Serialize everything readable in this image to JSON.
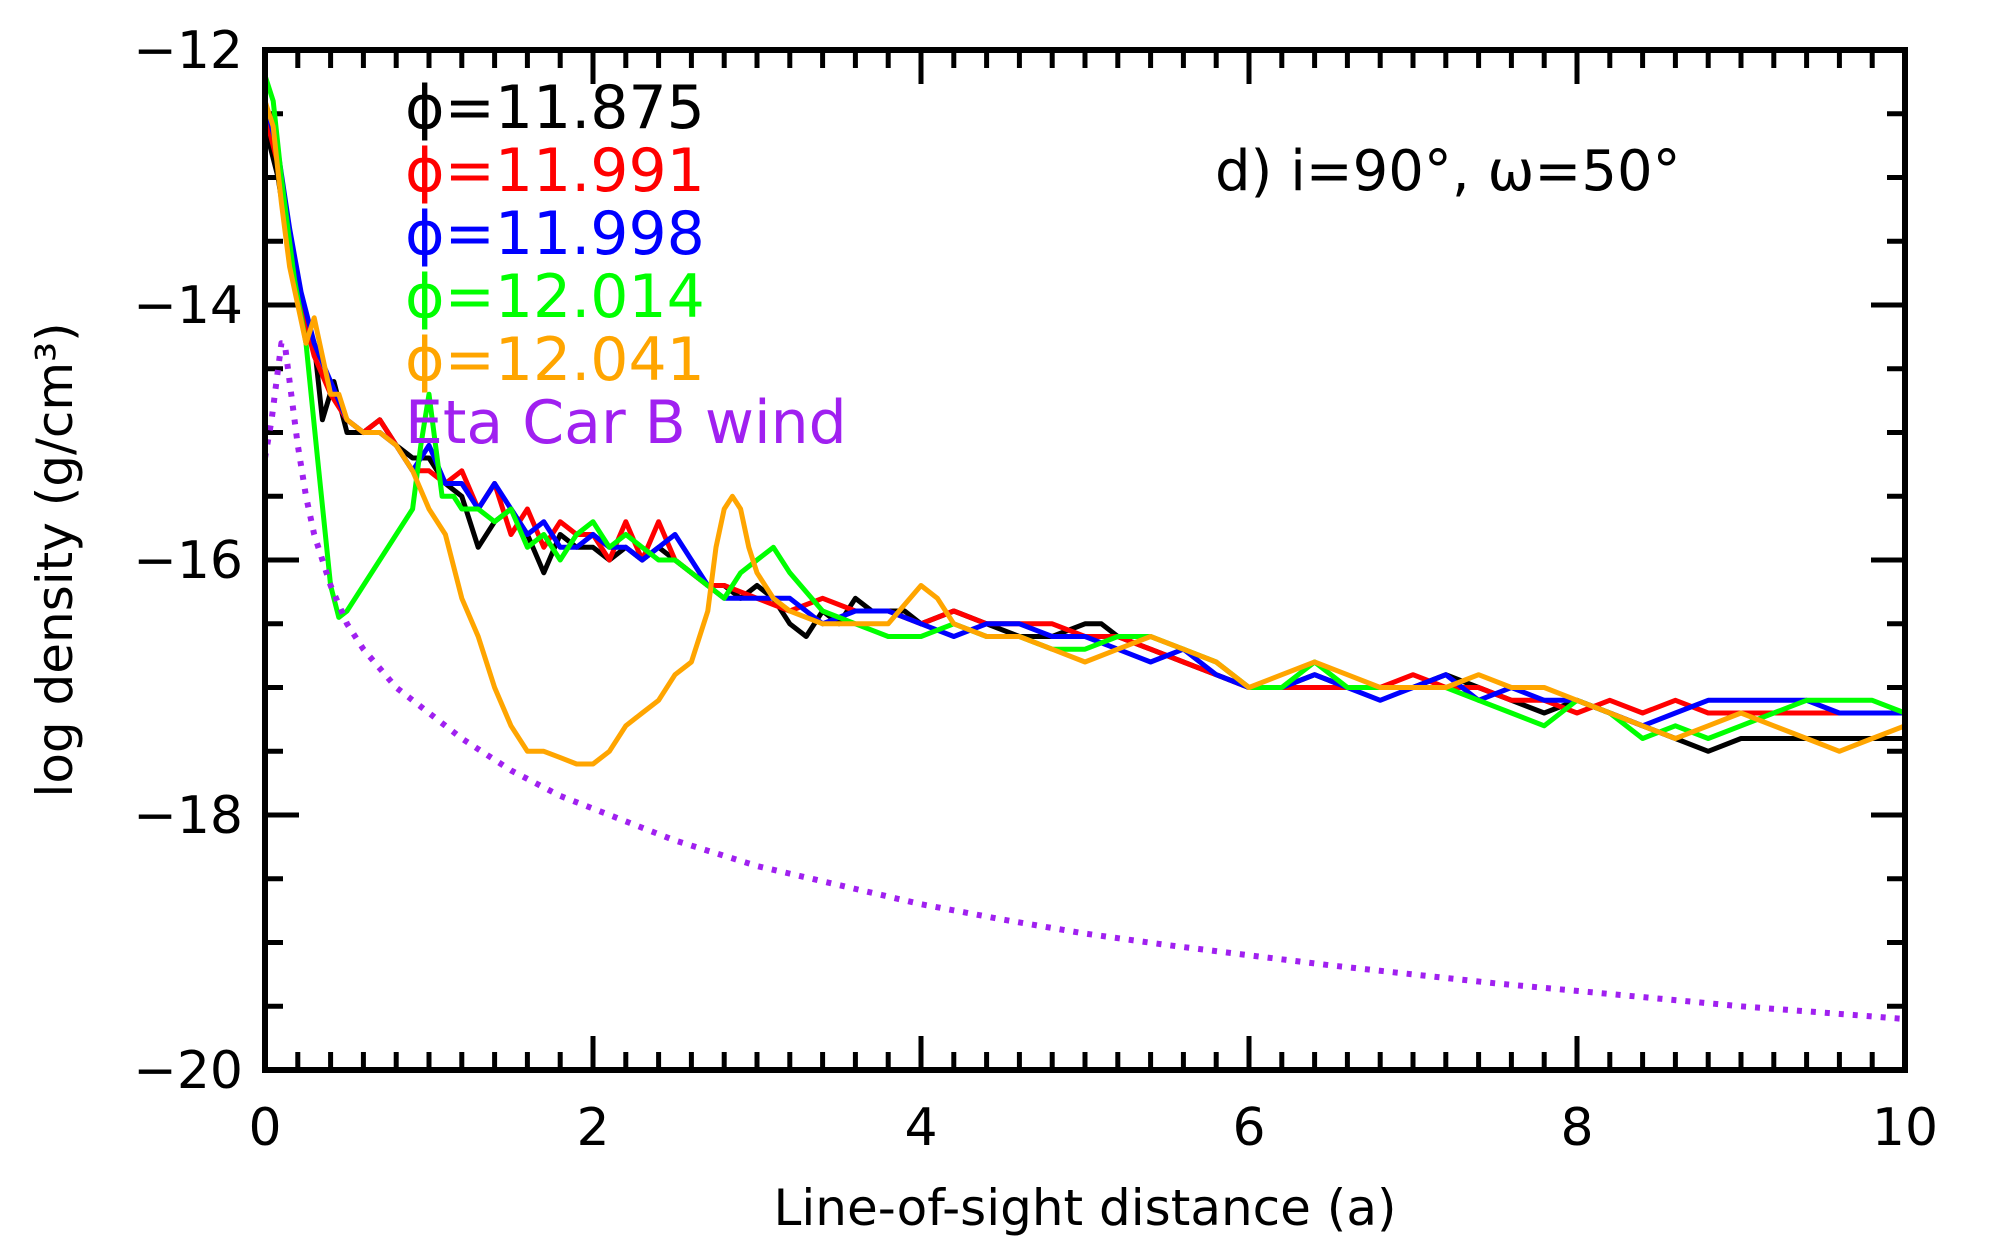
{
  "chart_data": {
    "type": "line",
    "xlabel": "Line-of-sight distance (a)",
    "ylabel": "log density (g/cm³)",
    "annotation": "d) i=90°, ω=50°",
    "xlim": [
      0,
      10
    ],
    "ylim": [
      -20,
      -12
    ],
    "x_major_ticks": [
      0,
      2,
      4,
      6,
      8,
      10
    ],
    "x_tick_labels": [
      "0",
      "2",
      "4",
      "6",
      "8",
      "10"
    ],
    "y_major_ticks": [
      -20,
      -18,
      -16,
      -14,
      -12
    ],
    "y_tick_labels": [
      "−20",
      "−18",
      "−16",
      "−14",
      "−12"
    ],
    "legend_position": "top-left",
    "grid": false,
    "series": [
      {
        "name": "ϕ=11.875",
        "color": "#000000",
        "style": "solid",
        "x": [
          0.0,
          0.08,
          0.15,
          0.22,
          0.3,
          0.35,
          0.42,
          0.5,
          0.6,
          0.7,
          0.8,
          0.9,
          1.0,
          1.1,
          1.2,
          1.3,
          1.4,
          1.5,
          1.6,
          1.7,
          1.8,
          1.9,
          2.0,
          2.1,
          2.2,
          2.3,
          2.4,
          2.5,
          2.6,
          2.7,
          2.8,
          2.9,
          3.0,
          3.1,
          3.2,
          3.3,
          3.4,
          3.5,
          3.6,
          3.7,
          3.8,
          3.9,
          4.0,
          4.2,
          4.4,
          4.6,
          4.8,
          5.0,
          5.1,
          5.2,
          5.4,
          5.6,
          5.8,
          6.0,
          6.2,
          6.4,
          6.6,
          6.8,
          7.0,
          7.2,
          7.4,
          7.6,
          7.8,
          8.0,
          8.2,
          8.4,
          8.6,
          8.8,
          9.0,
          9.2,
          9.4,
          9.6,
          9.8,
          10.0
        ],
        "y": [
          -12.6,
          -13.0,
          -13.6,
          -14.0,
          -14.3,
          -14.9,
          -14.6,
          -15.0,
          -15.0,
          -14.9,
          -15.1,
          -15.2,
          -15.2,
          -15.4,
          -15.5,
          -15.9,
          -15.7,
          -15.6,
          -15.8,
          -16.1,
          -15.8,
          -15.9,
          -15.9,
          -16.0,
          -15.9,
          -16.0,
          -15.9,
          -16.0,
          -16.1,
          -16.2,
          -16.2,
          -16.3,
          -16.2,
          -16.3,
          -16.5,
          -16.6,
          -16.4,
          -16.5,
          -16.3,
          -16.4,
          -16.4,
          -16.4,
          -16.5,
          -16.4,
          -16.5,
          -16.6,
          -16.6,
          -16.5,
          -16.5,
          -16.6,
          -16.7,
          -16.8,
          -16.9,
          -17.0,
          -17.0,
          -16.9,
          -17.0,
          -17.0,
          -17.0,
          -16.9,
          -17.0,
          -17.1,
          -17.2,
          -17.1,
          -17.2,
          -17.3,
          -17.4,
          -17.5,
          -17.4,
          -17.4,
          -17.4,
          -17.4,
          -17.4,
          -17.4
        ]
      },
      {
        "name": "ϕ=11.991",
        "color": "#ff0000",
        "style": "solid",
        "x": [
          0.0,
          0.08,
          0.15,
          0.22,
          0.3,
          0.4,
          0.5,
          0.6,
          0.7,
          0.8,
          0.9,
          1.0,
          1.1,
          1.2,
          1.3,
          1.4,
          1.5,
          1.6,
          1.7,
          1.8,
          1.9,
          2.0,
          2.1,
          2.2,
          2.3,
          2.4,
          2.5,
          2.6,
          2.7,
          2.8,
          3.0,
          3.2,
          3.4,
          3.6,
          3.8,
          4.0,
          4.2,
          4.4,
          4.6,
          4.8,
          5.0,
          5.2,
          5.4,
          5.6,
          5.8,
          6.0,
          6.2,
          6.4,
          6.6,
          6.8,
          7.0,
          7.2,
          7.4,
          7.6,
          7.8,
          8.0,
          8.2,
          8.4,
          8.6,
          8.8,
          9.0,
          9.2,
          9.4,
          9.6,
          9.8,
          10.0
        ],
        "y": [
          -12.5,
          -12.9,
          -13.5,
          -14.0,
          -14.4,
          -14.7,
          -14.9,
          -15.0,
          -14.9,
          -15.1,
          -15.3,
          -15.3,
          -15.4,
          -15.3,
          -15.6,
          -15.4,
          -15.8,
          -15.6,
          -15.9,
          -15.7,
          -15.8,
          -15.8,
          -16.0,
          -15.7,
          -16.0,
          -15.7,
          -16.0,
          -16.1,
          -16.2,
          -16.2,
          -16.3,
          -16.4,
          -16.3,
          -16.4,
          -16.4,
          -16.5,
          -16.4,
          -16.5,
          -16.5,
          -16.5,
          -16.6,
          -16.6,
          -16.7,
          -16.8,
          -16.9,
          -17.0,
          -17.0,
          -17.0,
          -17.0,
          -17.0,
          -16.9,
          -17.0,
          -17.0,
          -17.1,
          -17.1,
          -17.2,
          -17.1,
          -17.2,
          -17.1,
          -17.2,
          -17.2,
          -17.2,
          -17.2,
          -17.2,
          -17.2,
          -17.2
        ]
      },
      {
        "name": "ϕ=11.998",
        "color": "#0000ff",
        "style": "solid",
        "x": [
          0.0,
          0.08,
          0.15,
          0.22,
          0.3,
          0.4,
          0.5,
          0.6,
          0.7,
          0.8,
          0.9,
          1.0,
          1.1,
          1.2,
          1.3,
          1.4,
          1.5,
          1.6,
          1.7,
          1.8,
          1.9,
          2.0,
          2.1,
          2.2,
          2.3,
          2.4,
          2.5,
          2.6,
          2.7,
          2.8,
          3.0,
          3.2,
          3.4,
          3.6,
          3.8,
          4.0,
          4.2,
          4.4,
          4.6,
          4.8,
          5.0,
          5.2,
          5.4,
          5.6,
          5.8,
          6.0,
          6.2,
          6.4,
          6.6,
          6.8,
          7.0,
          7.2,
          7.4,
          7.6,
          7.8,
          8.0,
          8.2,
          8.4,
          8.6,
          8.8,
          9.0,
          9.2,
          9.4,
          9.6,
          9.8,
          10.0
        ],
        "y": [
          -12.4,
          -12.8,
          -13.4,
          -13.9,
          -14.3,
          -14.6,
          -14.9,
          -15.0,
          -15.0,
          -15.1,
          -15.3,
          -15.1,
          -15.4,
          -15.4,
          -15.6,
          -15.4,
          -15.6,
          -15.8,
          -15.7,
          -15.9,
          -15.9,
          -15.8,
          -15.9,
          -15.9,
          -16.0,
          -15.9,
          -15.8,
          -16.0,
          -16.2,
          -16.3,
          -16.3,
          -16.3,
          -16.5,
          -16.4,
          -16.4,
          -16.5,
          -16.6,
          -16.5,
          -16.5,
          -16.6,
          -16.6,
          -16.7,
          -16.8,
          -16.7,
          -16.9,
          -17.0,
          -17.0,
          -16.9,
          -17.0,
          -17.1,
          -17.0,
          -16.9,
          -17.1,
          -17.0,
          -17.1,
          -17.1,
          -17.2,
          -17.3,
          -17.2,
          -17.1,
          -17.1,
          -17.1,
          -17.1,
          -17.2,
          -17.2,
          -17.2
        ]
      },
      {
        "name": "ϕ=12.014",
        "color": "#00ff00",
        "style": "solid",
        "x": [
          0.0,
          0.05,
          0.1,
          0.18,
          0.25,
          0.32,
          0.4,
          0.45,
          0.5,
          0.6,
          0.7,
          0.8,
          0.9,
          0.95,
          1.0,
          1.03,
          1.08,
          1.15,
          1.2,
          1.3,
          1.4,
          1.5,
          1.6,
          1.7,
          1.8,
          1.9,
          2.0,
          2.1,
          2.2,
          2.3,
          2.4,
          2.5,
          2.6,
          2.7,
          2.8,
          2.9,
          3.0,
          3.1,
          3.2,
          3.4,
          3.6,
          3.8,
          4.0,
          4.2,
          4.4,
          4.6,
          4.8,
          5.0,
          5.2,
          5.4,
          5.6,
          5.8,
          6.0,
          6.2,
          6.4,
          6.6,
          6.8,
          7.0,
          7.2,
          7.4,
          7.6,
          7.8,
          8.0,
          8.2,
          8.4,
          8.6,
          8.8,
          9.0,
          9.2,
          9.4,
          9.6,
          9.8,
          10.0
        ],
        "y": [
          -12.2,
          -12.4,
          -13.0,
          -13.8,
          -14.3,
          -15.2,
          -16.2,
          -16.45,
          -16.4,
          -16.2,
          -16.0,
          -15.8,
          -15.6,
          -15.1,
          -14.7,
          -15.0,
          -15.5,
          -15.5,
          -15.6,
          -15.6,
          -15.7,
          -15.6,
          -15.9,
          -15.8,
          -16.0,
          -15.8,
          -15.7,
          -15.9,
          -15.8,
          -15.9,
          -16.0,
          -16.0,
          -16.1,
          -16.2,
          -16.3,
          -16.1,
          -16.0,
          -15.9,
          -16.1,
          -16.4,
          -16.5,
          -16.6,
          -16.6,
          -16.5,
          -16.6,
          -16.6,
          -16.7,
          -16.7,
          -16.6,
          -16.6,
          -16.7,
          -16.8,
          -17.0,
          -17.0,
          -16.8,
          -17.0,
          -17.0,
          -17.0,
          -17.0,
          -17.1,
          -17.2,
          -17.3,
          -17.1,
          -17.2,
          -17.4,
          -17.3,
          -17.4,
          -17.3,
          -17.2,
          -17.1,
          -17.1,
          -17.1,
          -17.2
        ]
      },
      {
        "name": "ϕ=12.041",
        "color": "#ffa500",
        "style": "solid",
        "x": [
          0.0,
          0.05,
          0.1,
          0.15,
          0.2,
          0.25,
          0.3,
          0.35,
          0.4,
          0.45,
          0.5,
          0.6,
          0.7,
          0.8,
          0.9,
          1.0,
          1.1,
          1.2,
          1.3,
          1.4,
          1.5,
          1.6,
          1.7,
          1.8,
          1.9,
          2.0,
          2.1,
          2.2,
          2.3,
          2.4,
          2.5,
          2.6,
          2.7,
          2.75,
          2.8,
          2.85,
          2.9,
          2.95,
          3.0,
          3.1,
          3.2,
          3.4,
          3.6,
          3.8,
          4.0,
          4.1,
          4.2,
          4.4,
          4.6,
          4.8,
          5.0,
          5.2,
          5.4,
          5.6,
          5.8,
          6.0,
          6.2,
          6.4,
          6.6,
          6.8,
          7.0,
          7.2,
          7.4,
          7.6,
          7.8,
          8.0,
          8.2,
          8.4,
          8.6,
          8.8,
          9.0,
          9.2,
          9.4,
          9.6,
          9.8,
          10.0
        ],
        "y": [
          -12.4,
          -12.6,
          -13.2,
          -13.7,
          -14.0,
          -14.3,
          -14.1,
          -14.4,
          -14.7,
          -14.7,
          -14.9,
          -15.0,
          -15.0,
          -15.1,
          -15.3,
          -15.6,
          -15.8,
          -16.3,
          -16.6,
          -17.0,
          -17.3,
          -17.5,
          -17.5,
          -17.55,
          -17.6,
          -17.6,
          -17.5,
          -17.3,
          -17.2,
          -17.1,
          -16.9,
          -16.8,
          -16.4,
          -15.9,
          -15.6,
          -15.5,
          -15.6,
          -15.9,
          -16.1,
          -16.3,
          -16.4,
          -16.5,
          -16.5,
          -16.5,
          -16.2,
          -16.3,
          -16.5,
          -16.6,
          -16.6,
          -16.7,
          -16.8,
          -16.7,
          -16.6,
          -16.7,
          -16.8,
          -17.0,
          -16.9,
          -16.8,
          -16.9,
          -17.0,
          -17.0,
          -17.0,
          -16.9,
          -17.0,
          -17.0,
          -17.1,
          -17.2,
          -17.3,
          -17.4,
          -17.3,
          -17.2,
          -17.3,
          -17.4,
          -17.5,
          -17.4,
          -17.3
        ]
      },
      {
        "name": "Eta Car B wind",
        "color": "#a020f0",
        "style": "dotted",
        "x": [
          0.0,
          0.04,
          0.08,
          0.1,
          0.12,
          0.15,
          0.2,
          0.25,
          0.3,
          0.4,
          0.5,
          0.6,
          0.8,
          1.0,
          1.2,
          1.5,
          1.8,
          2.0,
          2.5,
          3.0,
          3.5,
          4.0,
          4.5,
          5.0,
          5.5,
          6.0,
          6.5,
          7.0,
          7.5,
          8.0,
          8.5,
          9.0,
          9.5,
          10.0
        ],
        "y": [
          -15.2,
          -14.9,
          -14.5,
          -14.3,
          -14.3,
          -14.6,
          -15.1,
          -15.5,
          -15.8,
          -16.2,
          -16.5,
          -16.7,
          -17.0,
          -17.2,
          -17.4,
          -17.65,
          -17.85,
          -17.95,
          -18.2,
          -18.4,
          -18.55,
          -18.7,
          -18.82,
          -18.93,
          -19.02,
          -19.1,
          -19.18,
          -19.25,
          -19.32,
          -19.38,
          -19.44,
          -19.5,
          -19.55,
          -19.6
        ]
      }
    ]
  }
}
